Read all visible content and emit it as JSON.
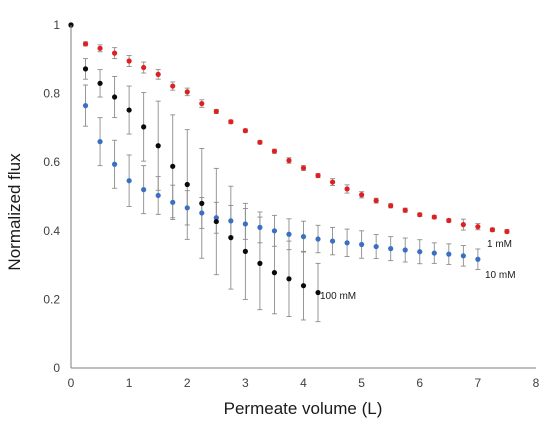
{
  "chart_data": {
    "type": "scatter",
    "title": "",
    "xlabel": "Permeate volume (L)",
    "ylabel": "Normalized flux",
    "xlim": [
      0,
      8
    ],
    "ylim": [
      0,
      1
    ],
    "x_ticks": [
      "0",
      "1",
      "2",
      "3",
      "4",
      "5",
      "6",
      "7",
      "8"
    ],
    "y_ticks": [
      "0",
      "0.2",
      "0.4",
      "0.6",
      "0.8",
      "1"
    ],
    "grid": false,
    "legend": "none",
    "series": [
      {
        "name": "1 mM",
        "color": "#e02020",
        "x": [
          0,
          0.25,
          0.5,
          0.75,
          1.0,
          1.25,
          1.5,
          1.75,
          2.0,
          2.25,
          2.5,
          2.75,
          3.0,
          3.25,
          3.5,
          3.75,
          4.0,
          4.25,
          4.5,
          4.75,
          5.0,
          5.25,
          5.5,
          5.75,
          6.0,
          6.25,
          6.5,
          6.75,
          7.0,
          7.25,
          7.5
        ],
        "y": [
          1.0,
          0.945,
          0.932,
          0.918,
          0.895,
          0.876,
          0.856,
          0.822,
          0.805,
          0.771,
          0.748,
          0.718,
          0.692,
          0.658,
          0.632,
          0.605,
          0.583,
          0.561,
          0.542,
          0.522,
          0.505,
          0.488,
          0.473,
          0.46,
          0.447,
          0.44,
          0.43,
          0.418,
          0.412,
          0.403,
          0.398
        ],
        "err": [
          0,
          0.006,
          0.01,
          0.016,
          0.016,
          0.016,
          0.014,
          0.012,
          0.011,
          0.011,
          0.006,
          0.005,
          0.005,
          0.005,
          0.006,
          0.008,
          0.007,
          0.006,
          0.01,
          0.012,
          0.009,
          0.007,
          0.006,
          0.006,
          0.005,
          0.005,
          0.005,
          0.016,
          0.009,
          0.005,
          0.005
        ]
      },
      {
        "name": "10 mM",
        "color": "#3a6fc4",
        "x": [
          0,
          0.25,
          0.5,
          0.75,
          1.0,
          1.25,
          1.5,
          1.75,
          2.0,
          2.25,
          2.5,
          2.75,
          3.0,
          3.25,
          3.5,
          3.75,
          4.0,
          4.25,
          4.5,
          4.75,
          5.0,
          5.25,
          5.5,
          5.75,
          6.0,
          6.25,
          6.5,
          6.75,
          7.0
        ],
        "y": [
          1.0,
          0.765,
          0.66,
          0.594,
          0.546,
          0.52,
          0.503,
          0.483,
          0.467,
          0.452,
          0.438,
          0.429,
          0.42,
          0.41,
          0.4,
          0.39,
          0.383,
          0.376,
          0.37,
          0.365,
          0.36,
          0.354,
          0.348,
          0.344,
          0.339,
          0.335,
          0.332,
          0.327,
          0.317
        ],
        "err": [
          0,
          0.06,
          0.07,
          0.07,
          0.075,
          0.07,
          0.055,
          0.05,
          0.05,
          0.045,
          0.045,
          0.045,
          0.045,
          0.045,
          0.045,
          0.045,
          0.045,
          0.04,
          0.04,
          0.04,
          0.04,
          0.035,
          0.035,
          0.035,
          0.035,
          0.03,
          0.03,
          0.03,
          0.03
        ]
      },
      {
        "name": "100 mM",
        "color": "#0a0a0a",
        "x": [
          0,
          0.25,
          0.5,
          0.75,
          1.0,
          1.25,
          1.5,
          1.75,
          2.0,
          2.25,
          2.5,
          2.75,
          3.0,
          3.25,
          3.5,
          3.75,
          4.0,
          4.25
        ],
        "y": [
          1.0,
          0.872,
          0.83,
          0.79,
          0.752,
          0.703,
          0.648,
          0.588,
          0.535,
          0.48,
          0.427,
          0.38,
          0.34,
          0.305,
          0.278,
          0.26,
          0.24,
          0.22
        ],
        "err": [
          0,
          0.03,
          0.04,
          0.06,
          0.07,
          0.1,
          0.13,
          0.15,
          0.16,
          0.16,
          0.155,
          0.15,
          0.14,
          0.135,
          0.12,
          0.11,
          0.1,
          0.085
        ]
      }
    ]
  }
}
